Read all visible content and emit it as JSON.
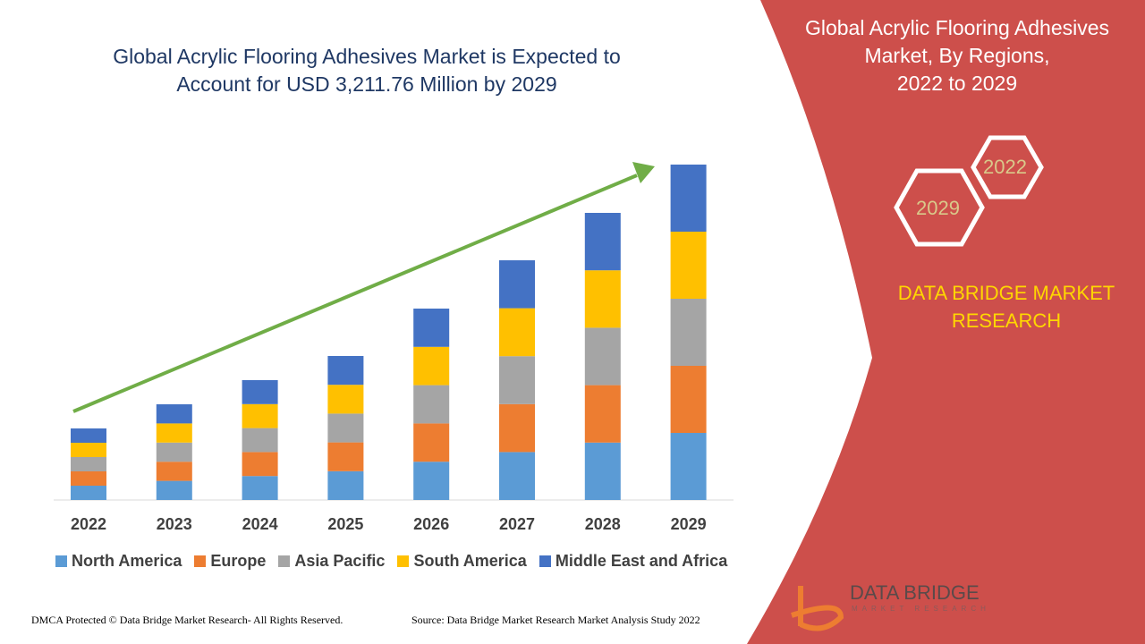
{
  "header": {
    "title_line1": "Global Acrylic Flooring Adhesives Market is Expected to",
    "title_line2": "Account for USD 3,211.76 Million by 2029"
  },
  "side_panel": {
    "title_line1": "Global Acrylic Flooring Adhesives",
    "title_line2": "Market, By Regions,",
    "title_line3": "2022 to 2029",
    "hex_a": "2022",
    "hex_b": "2029",
    "brand_line1": "DATA BRIDGE MARKET",
    "brand_line2": "RESEARCH",
    "logo_text": "DATA BRIDGE",
    "logo_sub": "MARKET RESEARCH",
    "panel_color": "#cd4f4b"
  },
  "footer": {
    "left": "DMCA Protected © Data Bridge Market Research- All Rights Reserved.",
    "right": "Source: Data Bridge Market Research Market Analysis Study 2022"
  },
  "chart_data": {
    "type": "bar",
    "stacked": true,
    "title": "",
    "xlabel": "",
    "ylabel": "",
    "ylim": [
      0,
      400
    ],
    "grid": false,
    "legend": "bottom",
    "trend_arrow": true,
    "categories": [
      "2022",
      "2023",
      "2024",
      "2025",
      "2026",
      "2027",
      "2028",
      "2029"
    ],
    "series": [
      {
        "name": "North America",
        "color": "#5b9bd5",
        "values": [
          16,
          21.4,
          26.8,
          32.2,
          42.8,
          53.6,
          64.2,
          75
        ]
      },
      {
        "name": "Europe",
        "color": "#ed7d31",
        "values": [
          16,
          21.4,
          26.8,
          32.2,
          42.8,
          53.6,
          64.2,
          75
        ]
      },
      {
        "name": "Asia Pacific",
        "color": "#a5a5a5",
        "values": [
          16,
          21.4,
          26.8,
          32.2,
          42.8,
          53.6,
          64.2,
          75
        ]
      },
      {
        "name": "South America",
        "color": "#ffc000",
        "values": [
          16,
          21.4,
          26.8,
          32.2,
          42.8,
          53.6,
          64.2,
          75
        ]
      },
      {
        "name": "Middle East and Africa",
        "color": "#4472c4",
        "values": [
          16,
          21.4,
          26.8,
          32.2,
          42.8,
          53.6,
          64.2,
          75
        ]
      }
    ]
  }
}
